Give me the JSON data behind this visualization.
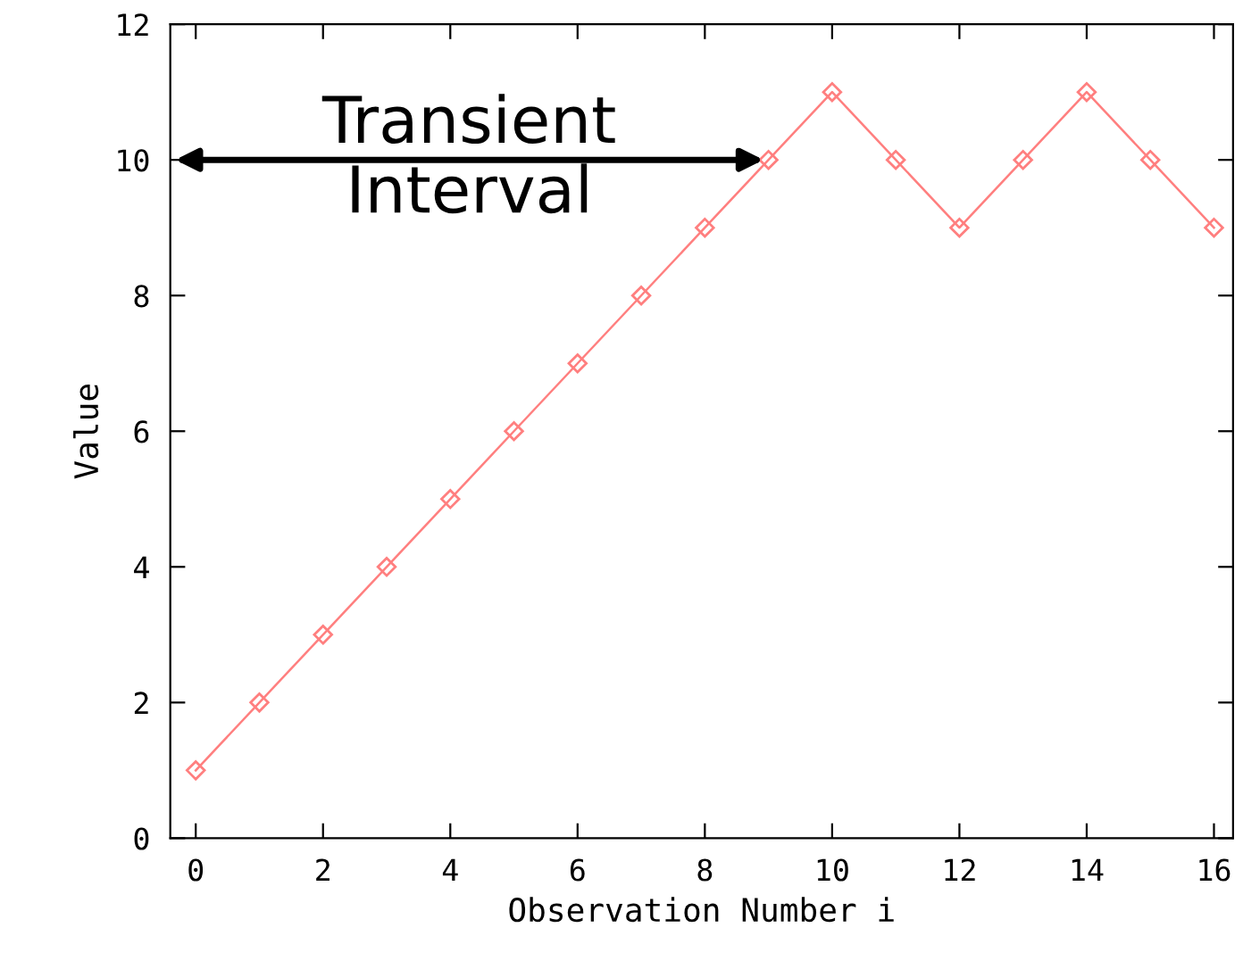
{
  "chart_data": {
    "type": "line",
    "xlabel": "Observation Number i",
    "ylabel": "Value",
    "x": [
      0,
      1,
      2,
      3,
      4,
      5,
      6,
      7,
      8,
      9,
      10,
      11,
      12,
      13,
      14,
      15,
      16
    ],
    "series": [
      {
        "color": "#ff7f7f",
        "values": [
          1,
          2,
          3,
          4,
          5,
          6,
          7,
          8,
          9,
          10,
          11,
          10,
          9,
          10,
          11,
          10,
          9
        ]
      }
    ],
    "marker": "diamond",
    "line_style": "solid",
    "grid": false,
    "legend": false,
    "xlim": [
      -0.4,
      16.3
    ],
    "xticks": [
      0,
      2,
      4,
      6,
      8,
      10,
      12,
      14,
      16
    ],
    "ylim": [
      0,
      12
    ],
    "yticks": [
      0,
      2,
      4,
      6,
      8,
      10,
      12
    ],
    "annotations": [
      {
        "text": "Transient\nInterval",
        "x": 9,
        "y": 10
      }
    ]
  }
}
